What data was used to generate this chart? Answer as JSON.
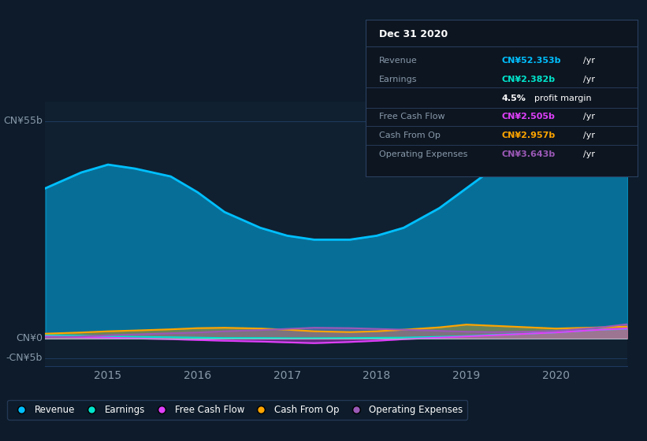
{
  "background_color": "#0d1b2a",
  "plot_bg_color": "#102030",
  "x_years": [
    2014.3,
    2014.7,
    2015.0,
    2015.3,
    2015.7,
    2016.0,
    2016.3,
    2016.7,
    2017.0,
    2017.3,
    2017.7,
    2018.0,
    2018.3,
    2018.7,
    2019.0,
    2019.3,
    2019.7,
    2020.0,
    2020.5,
    2020.8
  ],
  "revenue": [
    38,
    42,
    44,
    43,
    41,
    37,
    32,
    28,
    26,
    25,
    25,
    26,
    28,
    33,
    38,
    43,
    47,
    51,
    53,
    52
  ],
  "earnings": [
    0.8,
    0.7,
    0.5,
    0.4,
    0.3,
    0.2,
    0.1,
    0.1,
    0.05,
    0.05,
    0.1,
    0.15,
    0.2,
    0.4,
    0.6,
    0.9,
    1.2,
    1.5,
    2.2,
    2.4
  ],
  "free_cash_flow": [
    0.5,
    0.3,
    0.2,
    0.0,
    -0.2,
    -0.4,
    -0.6,
    -0.8,
    -1.0,
    -1.2,
    -0.9,
    -0.6,
    -0.2,
    0.2,
    0.5,
    0.8,
    1.2,
    1.5,
    2.2,
    2.5
  ],
  "cash_from_op": [
    1.2,
    1.5,
    1.8,
    2.0,
    2.3,
    2.6,
    2.7,
    2.5,
    2.2,
    1.8,
    1.6,
    1.8,
    2.2,
    2.8,
    3.5,
    3.2,
    2.8,
    2.5,
    2.8,
    3.0
  ],
  "operating_expenses": [
    0.3,
    0.5,
    0.8,
    1.0,
    1.3,
    1.5,
    1.8,
    2.1,
    2.4,
    2.7,
    2.6,
    2.4,
    2.2,
    1.9,
    1.7,
    1.6,
    1.7,
    1.9,
    2.8,
    3.6
  ],
  "revenue_color": "#00bfff",
  "earnings_color": "#00e5cc",
  "free_cash_flow_color": "#e040fb",
  "cash_from_op_color": "#ffa500",
  "operating_expenses_color": "#9b59b6",
  "grid_color": "#1e3a5f",
  "text_color": "#8899aa",
  "white_color": "#ffffff",
  "ylim": [
    -7,
    60
  ],
  "ytick_vals": [
    -5,
    0,
    55
  ],
  "ytick_labels": [
    "-CN¥5b",
    "CN¥0",
    "CN¥55b"
  ],
  "xticks": [
    2015,
    2016,
    2017,
    2018,
    2019,
    2020
  ],
  "legend_labels": [
    "Revenue",
    "Earnings",
    "Free Cash Flow",
    "Cash From Op",
    "Operating Expenses"
  ],
  "tooltip_title": "Dec 31 2020",
  "tooltip_rows": [
    {
      "label": "Revenue",
      "value": "CN¥52.353b",
      "suffix": " /yr",
      "value_color": "#00bfff",
      "extra": null
    },
    {
      "label": "Earnings",
      "value": "CN¥2.382b",
      "suffix": " /yr",
      "value_color": "#00e5cc",
      "extra": "4.5% profit margin"
    },
    {
      "label": "Free Cash Flow",
      "value": "CN¥2.505b",
      "suffix": " /yr",
      "value_color": "#e040fb",
      "extra": null
    },
    {
      "label": "Cash From Op",
      "value": "CN¥2.957b",
      "suffix": " /yr",
      "value_color": "#ffa500",
      "extra": null
    },
    {
      "label": "Operating Expenses",
      "value": "CN¥3.643b",
      "suffix": " /yr",
      "value_color": "#9b59b6",
      "extra": null
    }
  ]
}
